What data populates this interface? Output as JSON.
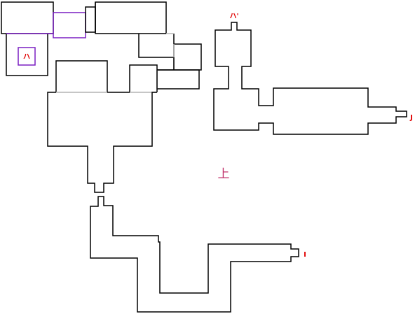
{
  "labels": {
    "room_marker": "ハ",
    "exit_top": "ハ'",
    "exit_right": "J",
    "exit_bottom_right": "I",
    "floor": "上"
  },
  "colors": {
    "wall": "#000000",
    "partition": "#b4b4b4",
    "highlight": "#7a1fc2",
    "marker_text": "#e00000",
    "floor_text": "#c0306a"
  }
}
